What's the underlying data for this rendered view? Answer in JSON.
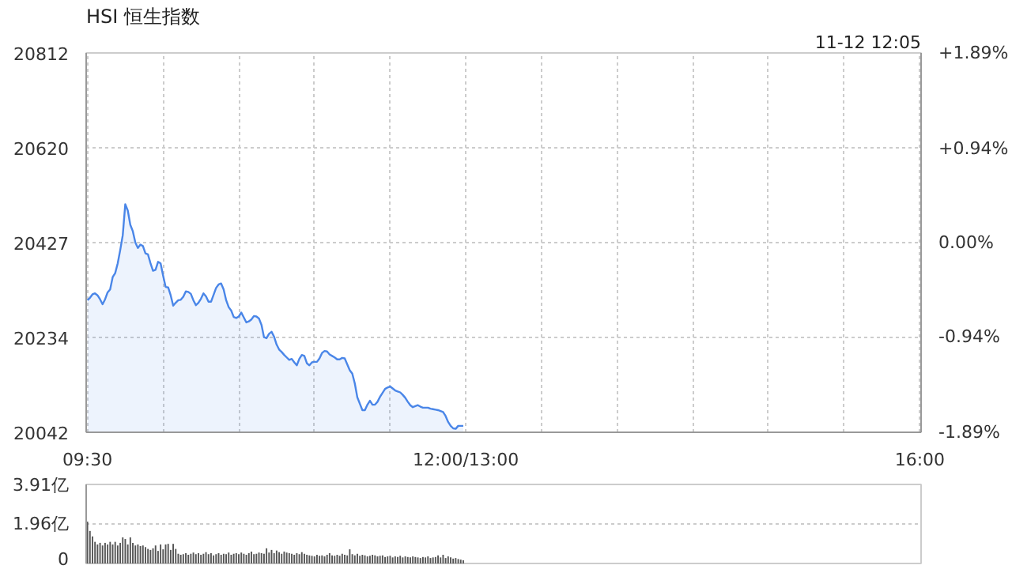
{
  "chart_data": [
    {
      "type": "area",
      "title": "HSI 恒生指数",
      "annotations": [
        "11-12 12:05"
      ],
      "categories": [
        "09:30",
        null,
        null,
        null,
        null,
        null,
        null,
        null,
        null,
        null,
        null,
        null,
        null,
        null,
        null,
        null,
        null,
        null,
        null,
        null,
        null,
        null,
        null,
        null,
        null,
        null,
        null,
        null,
        null,
        null,
        null,
        null,
        null,
        null,
        null,
        null,
        null,
        null,
        null,
        null,
        null,
        null,
        null,
        null,
        null,
        null,
        null,
        null,
        null,
        null,
        null,
        null,
        null,
        null,
        null,
        null,
        null,
        null,
        null,
        null,
        null,
        null,
        null,
        null,
        null,
        null,
        null,
        null,
        null,
        null,
        null,
        null,
        null,
        null,
        null,
        null,
        null,
        null,
        null,
        null,
        null,
        null,
        null,
        null,
        null,
        null,
        null,
        null,
        null,
        null,
        null,
        null,
        null,
        null,
        null,
        null,
        null,
        null,
        null,
        null,
        null,
        null,
        null,
        null,
        null,
        null,
        null,
        null,
        null,
        null,
        null,
        null,
        null,
        null,
        null,
        null,
        null,
        null,
        null,
        null,
        null,
        null,
        null,
        null,
        null,
        null,
        null,
        null,
        null,
        null,
        null,
        null,
        null,
        null,
        null,
        null,
        null,
        null,
        null,
        null,
        null,
        null,
        null,
        null,
        null,
        null,
        null,
        null,
        null,
        null,
        "12:00/13:00",
        null,
        null,
        null,
        null,
        null,
        null,
        null,
        null,
        null,
        null,
        null,
        null,
        null,
        null,
        null,
        null,
        null,
        null,
        null,
        null,
        null,
        null,
        null,
        null,
        null,
        null,
        null,
        null,
        null,
        null,
        null,
        null,
        null,
        null,
        null,
        null,
        null,
        null,
        null,
        null,
        null,
        null,
        null,
        null,
        null,
        null,
        null,
        null,
        null,
        null,
        null,
        null,
        null,
        null,
        null,
        null,
        null,
        null,
        null,
        null,
        null,
        null,
        null,
        null,
        null,
        null,
        null,
        null,
        null,
        null,
        null,
        null,
        null,
        null,
        null,
        null,
        null,
        null,
        null,
        null,
        null,
        null,
        null,
        null,
        null,
        null,
        null,
        null,
        null,
        null,
        null,
        null,
        null,
        null,
        null,
        null,
        null,
        null,
        null,
        null,
        null,
        null,
        null,
        null,
        null,
        null,
        null,
        null,
        null,
        null,
        null,
        null,
        null,
        null,
        null,
        null,
        null,
        null,
        null,
        null,
        null,
        null,
        null,
        null,
        null,
        null,
        null,
        null,
        null,
        null,
        null,
        null,
        null,
        null,
        null,
        null,
        null,
        null,
        null,
        null,
        null,
        null,
        null,
        null,
        null,
        null,
        null,
        null,
        null,
        null,
        null,
        null,
        null,
        null,
        null,
        null,
        null,
        null,
        null,
        null,
        null,
        null,
        null,
        null,
        null,
        null,
        null,
        null,
        null,
        null,
        null,
        null,
        null,
        null,
        null,
        null,
        null,
        null,
        null,
        "16:00"
      ],
      "series": [
        {
          "color": "#4a86e8",
          "values": [
            20310,
            20315,
            20322,
            20324,
            20320,
            20312,
            20302,
            20312,
            20326,
            20332,
            20357,
            20365,
            20385,
            20412,
            20442,
            20505,
            20492,
            20463,
            20450,
            20427,
            20416,
            20423,
            20420,
            20405,
            20403,
            20385,
            20370,
            20372,
            20388,
            20385,
            20360,
            20337,
            20336,
            20320,
            20299,
            20305,
            20310,
            20311,
            20317,
            20328,
            20327,
            20323,
            20310,
            20300,
            20305,
            20313,
            20324,
            20318,
            20307,
            20307,
            20321,
            20335,
            20342,
            20344,
            20332,
            20310,
            20296,
            20289,
            20276,
            20274,
            20277,
            20285,
            20275,
            20265,
            20267,
            20271,
            20278,
            20277,
            20273,
            20260,
            20235,
            20233,
            20242,
            20246,
            20236,
            20220,
            20210,
            20205,
            20199,
            20194,
            20189,
            20191,
            20184,
            20178,
            20191,
            20199,
            20197,
            20182,
            20178,
            20184,
            20185,
            20185,
            20192,
            20203,
            20207,
            20206,
            20200,
            20197,
            20194,
            20190,
            20190,
            20193,
            20192,
            20180,
            20168,
            20161,
            20141,
            20113,
            20100,
            20087,
            20087,
            20098,
            20106,
            20098,
            20098,
            20104,
            20114,
            20122,
            20130,
            20133,
            20135,
            20131,
            20127,
            20125,
            20123,
            20118,
            20112,
            20104,
            20097,
            20093,
            20095,
            20097,
            20094,
            20092,
            20092,
            20092,
            20090,
            20089,
            20088,
            20087,
            20085,
            20083,
            20075,
            20063,
            20055,
            20050,
            20049,
            20055,
            20055,
            20055,
            null,
            null,
            null,
            null,
            null,
            null,
            null,
            null,
            null,
            null,
            null,
            null,
            null,
            null,
            null,
            null,
            null,
            null,
            null,
            null,
            null,
            null,
            null,
            null,
            null,
            null,
            null,
            null,
            null,
            null,
            null,
            null,
            null,
            null,
            null,
            null,
            null,
            null,
            null,
            null,
            null,
            null,
            null,
            null,
            null,
            null,
            null,
            null,
            null,
            null,
            null,
            null,
            null,
            null,
            null,
            null,
            null,
            null,
            null,
            null,
            null,
            null,
            null,
            null,
            null,
            null,
            null,
            null,
            null,
            null,
            null,
            null,
            null,
            null,
            null,
            null,
            null,
            null,
            null,
            null,
            null,
            null,
            null,
            null,
            null,
            null,
            null,
            null,
            null,
            null,
            null,
            null,
            null,
            null,
            null,
            null,
            null,
            null,
            null,
            null,
            null,
            null,
            null,
            null,
            null,
            null,
            null,
            null,
            null,
            null,
            null,
            null,
            null,
            null,
            null,
            null,
            null,
            null,
            null,
            null,
            null,
            null,
            null,
            null,
            null,
            null,
            null,
            null,
            null,
            null,
            null,
            null,
            null,
            null,
            null,
            null,
            null,
            null,
            null,
            null,
            null,
            null,
            null,
            null,
            null,
            null,
            null,
            null,
            null,
            null,
            null,
            null,
            null,
            null,
            null,
            null,
            null,
            null,
            null,
            null,
            null,
            null,
            null,
            null,
            null,
            null,
            null,
            null,
            null,
            null,
            null,
            null,
            null,
            null,
            null,
            null,
            null,
            null,
            null,
            null,
            null
          ]
        }
      ],
      "ylim": [
        20042,
        20812
      ],
      "yticks": [
        20042,
        20234,
        20427,
        20620,
        20812
      ],
      "y2lim": [
        -1.89,
        1.89
      ],
      "y2ticks": [
        {
          "value": -1.89,
          "label": "-1.89%"
        },
        {
          "value": -0.94,
          "label": "-0.94%"
        },
        {
          "value": 0,
          "label": "0.00%"
        },
        {
          "value": 0.94,
          "label": "+0.94%"
        },
        {
          "value": 1.89,
          "label": "+1.89%"
        }
      ],
      "grid": true
    },
    {
      "type": "bar",
      "grid": "y",
      "categories": [
        null,
        null,
        null,
        null,
        null,
        null,
        null,
        null,
        null,
        null,
        null,
        null,
        null,
        null,
        null,
        null,
        null,
        null,
        null,
        null,
        null,
        null,
        null,
        null,
        null,
        null,
        null,
        null,
        null,
        null,
        null,
        null,
        null,
        null,
        null,
        null,
        null,
        null,
        null,
        null,
        null,
        null,
        null,
        null,
        null,
        null,
        null,
        null,
        null,
        null,
        null,
        null,
        null,
        null,
        null,
        null,
        null,
        null,
        null,
        null,
        null,
        null,
        null,
        null,
        null,
        null,
        null,
        null,
        null,
        null,
        null,
        null,
        null,
        null,
        null,
        null,
        null,
        null,
        null,
        null,
        null,
        null,
        null,
        null,
        null,
        null,
        null,
        null,
        null,
        null,
        null,
        null,
        null,
        null,
        null,
        null,
        null,
        null,
        null,
        null,
        null,
        null,
        null,
        null,
        null,
        null,
        null,
        null,
        null,
        null,
        null,
        null,
        null,
        null,
        null,
        null,
        null,
        null,
        null,
        null,
        null,
        null,
        null,
        null,
        null,
        null,
        null,
        null,
        null,
        null,
        null,
        null,
        null,
        null,
        null,
        null,
        null,
        null,
        null,
        null,
        null,
        null,
        null,
        null,
        null,
        null,
        null,
        null,
        null,
        null,
        null,
        null,
        null,
        null,
        null,
        null,
        null,
        null,
        null,
        null,
        null,
        null,
        null,
        null,
        null,
        null,
        null,
        null,
        null,
        null,
        null,
        null,
        null,
        null,
        null,
        null,
        null,
        null,
        null,
        null,
        null,
        null,
        null,
        null,
        null,
        null,
        null,
        null,
        null,
        null,
        null,
        null,
        null,
        null,
        null,
        null,
        null,
        null,
        null,
        null,
        null,
        null,
        null,
        null,
        null,
        null,
        null,
        null,
        null,
        null,
        null,
        null,
        null,
        null,
        null,
        null,
        null,
        null,
        null,
        null,
        null,
        null,
        null,
        null,
        null,
        null,
        null,
        null,
        null,
        null,
        null,
        null,
        null,
        null,
        null,
        null,
        null,
        null,
        null,
        null,
        null,
        null,
        null,
        null,
        null,
        null,
        null,
        null,
        null,
        null,
        null,
        null,
        null,
        null,
        null,
        null,
        null,
        null,
        null,
        null,
        null,
        null,
        null,
        null,
        null,
        null,
        null,
        null,
        null,
        null,
        null,
        null,
        null,
        null,
        null,
        null,
        null,
        null,
        null,
        null,
        null,
        null,
        null,
        null,
        null,
        null,
        null,
        null,
        null,
        null,
        null,
        null,
        null,
        null,
        null,
        null,
        null,
        null,
        null,
        null,
        null,
        null,
        null,
        null,
        null,
        null,
        null,
        null,
        null,
        null,
        null,
        null,
        null,
        null,
        null,
        null,
        null,
        null,
        null,
        null,
        null,
        null,
        null,
        null,
        null,
        null,
        null,
        null,
        null,
        null,
        null
      ],
      "series": [
        {
          "color": "#555555",
          "values": [
            2.07,
            1.61,
            1.34,
            1.07,
            0.94,
            1.02,
            0.89,
            1.02,
            0.94,
            1.07,
            0.94,
            1.07,
            0.89,
            1.02,
            1.29,
            1.21,
            0.94,
            1.29,
            1.02,
            0.89,
            0.94,
            0.86,
            0.89,
            0.81,
            0.72,
            0.67,
            0.75,
            0.89,
            0.62,
            0.94,
            0.7,
            0.94,
            0.97,
            0.67,
            0.97,
            0.72,
            0.48,
            0.43,
            0.46,
            0.51,
            0.43,
            0.48,
            0.54,
            0.46,
            0.51,
            0.43,
            0.48,
            0.56,
            0.46,
            0.51,
            0.4,
            0.46,
            0.51,
            0.43,
            0.48,
            0.46,
            0.54,
            0.43,
            0.48,
            0.51,
            0.46,
            0.54,
            0.48,
            0.43,
            0.51,
            0.59,
            0.46,
            0.48,
            0.54,
            0.51,
            0.48,
            0.75,
            0.54,
            0.67,
            0.51,
            0.64,
            0.56,
            0.48,
            0.59,
            0.54,
            0.51,
            0.48,
            0.43,
            0.51,
            0.46,
            0.56,
            0.48,
            0.43,
            0.4,
            0.38,
            0.35,
            0.43,
            0.38,
            0.4,
            0.35,
            0.43,
            0.51,
            0.4,
            0.38,
            0.43,
            0.38,
            0.48,
            0.43,
            0.4,
            0.7,
            0.46,
            0.4,
            0.48,
            0.38,
            0.43,
            0.4,
            0.35,
            0.38,
            0.43,
            0.4,
            0.35,
            0.38,
            0.4,
            0.32,
            0.35,
            0.38,
            0.3,
            0.35,
            0.32,
            0.38,
            0.3,
            0.35,
            0.32,
            0.3,
            0.35,
            0.32,
            0.3,
            0.27,
            0.32,
            0.3,
            0.35,
            0.27,
            0.3,
            0.32,
            0.4,
            0.3,
            0.43,
            0.27,
            0.35,
            0.3,
            0.24,
            0.27,
            0.22,
            0.19,
            0.16,
            null,
            null,
            null,
            null,
            null,
            null,
            null,
            null,
            null,
            null,
            null,
            null,
            null,
            null,
            null,
            null,
            null,
            null,
            null,
            null,
            null,
            null,
            null,
            null,
            null,
            null,
            null,
            null,
            null,
            null,
            null,
            null,
            null,
            null,
            null,
            null,
            null,
            null,
            null,
            null,
            null,
            null,
            null,
            null,
            null,
            null,
            null,
            null,
            null,
            null,
            null,
            null,
            null,
            null,
            null,
            null,
            null,
            null,
            null,
            null,
            null,
            null,
            null,
            null,
            null,
            null,
            null,
            null,
            null,
            null,
            null,
            null,
            null,
            null,
            null,
            null,
            null,
            null,
            null,
            null,
            null,
            null,
            null,
            null,
            null,
            null,
            null,
            null,
            null,
            null,
            null,
            null,
            null,
            null,
            null,
            null,
            null,
            null,
            null,
            null,
            null,
            null,
            null,
            null,
            null,
            null,
            null,
            null,
            null,
            null,
            null,
            null,
            null,
            null,
            null,
            null,
            null,
            null,
            null,
            null,
            null,
            null,
            null,
            null,
            null,
            null,
            null,
            null,
            null,
            null,
            null,
            null,
            null,
            null,
            null,
            null,
            null,
            null,
            null,
            null,
            null,
            null,
            null,
            null,
            null,
            null,
            null,
            null,
            null,
            null,
            null,
            null,
            null,
            null,
            null,
            null,
            null,
            null,
            null,
            null,
            null,
            null,
            null,
            null,
            null,
            null,
            null,
            null,
            null,
            null,
            null,
            null,
            null,
            null,
            null,
            null,
            null,
            null,
            null,
            null,
            null
          ]
        }
      ],
      "ylim": [
        0,
        3.91
      ],
      "yticks": [
        0,
        {
          "value": 1.96,
          "label": "1.96亿"
        },
        {
          "value": 3.91,
          "label": "3.91亿"
        }
      ]
    }
  ]
}
